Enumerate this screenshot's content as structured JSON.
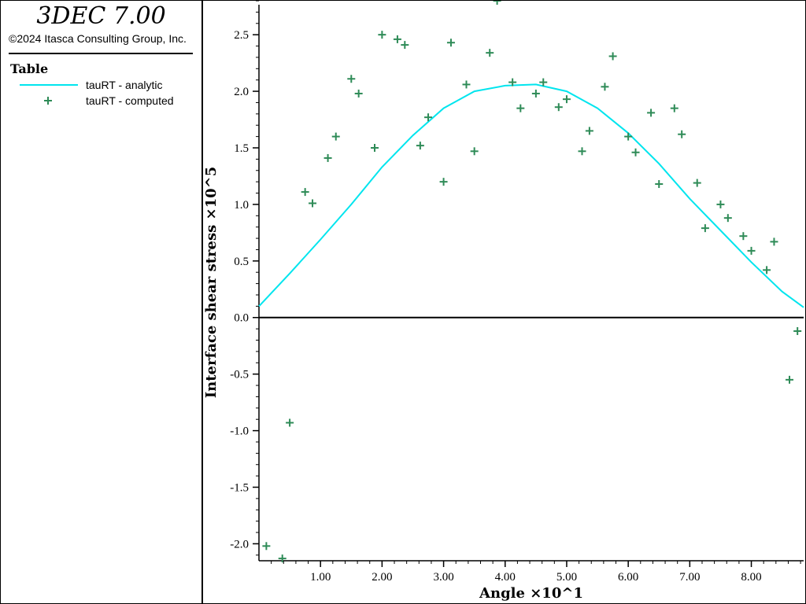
{
  "app": {
    "title": "3DEC 7.00",
    "copyright": "©2024 Itasca Consulting Group, Inc."
  },
  "legend": {
    "heading": "Table",
    "items": [
      {
        "label": "tauRT - analytic",
        "color": "#00e5ee",
        "marker": "line"
      },
      {
        "label": "tauRT - computed",
        "color": "#2e8b57",
        "marker": "plus"
      }
    ]
  },
  "chart_data": {
    "type": "scatter",
    "xlabel": "Angle ×10^1",
    "ylabel": "Interface shear stress ×10^5",
    "xlim": [
      0.0,
      8.85
    ],
    "ylim": [
      -2.15,
      2.8
    ],
    "xticks": [
      1.0,
      2.0,
      3.0,
      4.0,
      5.0,
      6.0,
      7.0,
      8.0
    ],
    "xtick_labels": [
      "1.00",
      "2.00",
      "3.00",
      "4.00",
      "5.00",
      "6.00",
      "7.00",
      "8.00"
    ],
    "yticks": [
      -2.0,
      -1.5,
      -1.0,
      -0.5,
      0.0,
      0.5,
      1.0,
      1.5,
      2.0,
      2.5
    ],
    "ytick_labels": [
      "-2.0",
      "-1.5",
      "-1.0",
      "-0.5",
      "0.0",
      "0.5",
      "1.0",
      "1.5",
      "2.0",
      "2.5"
    ],
    "zero_line": true,
    "series": [
      {
        "name": "tauRT - analytic",
        "kind": "line",
        "color": "#00e5ee",
        "x": [
          0.0,
          0.5,
          1.0,
          1.5,
          2.0,
          2.5,
          3.0,
          3.5,
          4.0,
          4.5,
          5.0,
          5.5,
          6.0,
          6.5,
          7.0,
          7.5,
          8.0,
          8.5,
          8.85
        ],
        "y": [
          0.1,
          0.39,
          0.69,
          1.0,
          1.33,
          1.61,
          1.85,
          2.0,
          2.05,
          2.06,
          2.0,
          1.85,
          1.63,
          1.36,
          1.05,
          0.77,
          0.49,
          0.23,
          0.09
        ]
      },
      {
        "name": "tauRT - computed",
        "kind": "scatter",
        "color": "#2e8b57",
        "x": [
          0.12,
          0.38,
          0.5,
          0.75,
          0.87,
          1.12,
          1.25,
          1.5,
          1.62,
          1.88,
          2.0,
          2.25,
          2.37,
          2.62,
          2.75,
          3.0,
          3.12,
          3.37,
          3.5,
          3.75,
          3.87,
          4.12,
          4.25,
          4.5,
          4.62,
          4.87,
          5.0,
          5.25,
          5.37,
          5.62,
          5.75,
          6.0,
          6.12,
          6.37,
          6.5,
          6.75,
          6.87,
          7.12,
          7.25,
          7.5,
          7.62,
          7.87,
          8.0,
          8.25,
          8.37,
          8.62,
          8.75
        ],
        "y": [
          -2.02,
          -2.13,
          -0.93,
          1.11,
          1.01,
          1.41,
          1.6,
          2.11,
          1.98,
          1.5,
          2.5,
          2.46,
          2.41,
          1.52,
          1.77,
          1.2,
          2.43,
          2.06,
          1.47,
          2.34,
          2.8,
          2.08,
          1.85,
          1.98,
          2.08,
          1.86,
          1.93,
          1.47,
          1.65,
          2.04,
          2.31,
          1.6,
          1.46,
          1.81,
          1.18,
          1.85,
          1.62,
          1.19,
          0.79,
          1.0,
          0.88,
          0.72,
          0.59,
          0.42,
          0.67,
          -0.55,
          -0.12
        ]
      }
    ]
  }
}
